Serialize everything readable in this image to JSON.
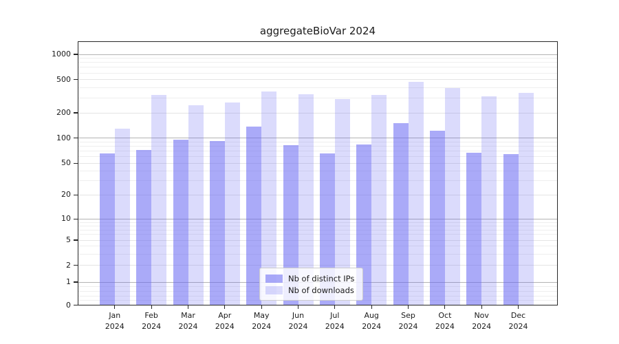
{
  "chart_data": {
    "type": "bar",
    "title": "aggregateBioVar 2024",
    "year_label": "2024",
    "categories": [
      "Jan",
      "Feb",
      "Mar",
      "Apr",
      "May",
      "Jun",
      "Jul",
      "Aug",
      "Sep",
      "Oct",
      "Nov",
      "Dec"
    ],
    "series": [
      {
        "name": "Nb of distinct IPs",
        "values": [
          66,
          72,
          95,
          92,
          137,
          82,
          66,
          84,
          150,
          122,
          67,
          64
        ]
      },
      {
        "name": "Nb of downloads",
        "values": [
          130,
          327,
          248,
          265,
          360,
          331,
          295,
          330,
          470,
          400,
          317,
          350
        ]
      }
    ],
    "yscale": "symlog",
    "ylim": [
      0,
      1435
    ],
    "yticks": [
      0,
      1,
      2,
      5,
      10,
      20,
      50,
      100,
      200,
      500,
      1000
    ],
    "grid": true,
    "legend_position": "lower center",
    "colors": {
      "bar_base": "#6464f3",
      "series_alpha": [
        0.55,
        0.23
      ],
      "grid_major": "#b3b3b3",
      "grid_labeled": "#e4e4e4",
      "grid_minor": "#eeeeee",
      "text": "#1a1a1a",
      "spine": "#262626",
      "legend_bg": "rgba(255,255,255,0.8)",
      "legend_border": "#cccccc"
    }
  }
}
